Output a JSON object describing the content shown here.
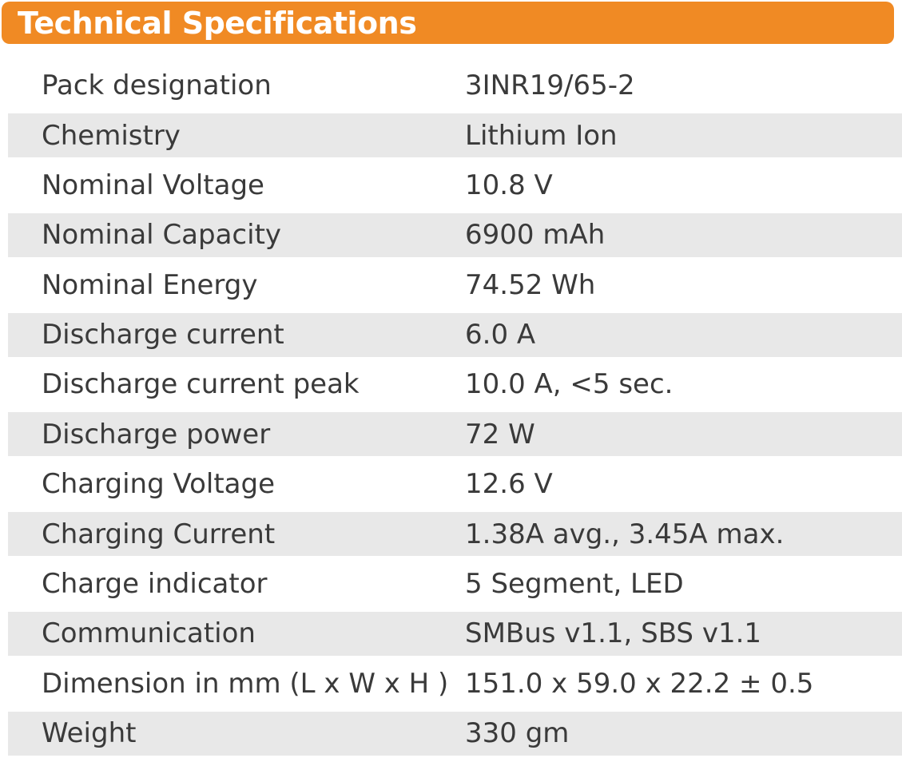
{
  "header": {
    "title": "Technical Specifications"
  },
  "colors": {
    "header_bg": "#f08a24",
    "header_text": "#ffffff",
    "stripe": "#e8e8e8",
    "text": "#3a3a3a"
  },
  "specs": [
    {
      "label": "Pack designation",
      "value": "3INR19/65-2"
    },
    {
      "label": "Chemistry",
      "value": "Lithium Ion"
    },
    {
      "label": "Nominal Voltage",
      "value": "10.8 V"
    },
    {
      "label": "Nominal Capacity",
      "value": "6900 mAh"
    },
    {
      "label": "Nominal Energy",
      "value": "74.52 Wh"
    },
    {
      "label": "Discharge current",
      "value": "6.0 A"
    },
    {
      "label": "Discharge current peak",
      "value": "10.0 A, <5 sec."
    },
    {
      "label": "Discharge power",
      "value": "72 W"
    },
    {
      "label": "Charging Voltage",
      "value": "12.6 V"
    },
    {
      "label": "Charging Current",
      "value": "1.38A avg., 3.45A max."
    },
    {
      "label": "Charge indicator",
      "value": "5 Segment, LED"
    },
    {
      "label": "Communication",
      "value": "SMBus v1.1, SBS v1.1"
    },
    {
      "label": "Dimension in mm (L x W x H )",
      "value": "151.0 x 59.0 x 22.2 ± 0.5"
    },
    {
      "label": "Weight",
      "value": "330 gm"
    }
  ]
}
